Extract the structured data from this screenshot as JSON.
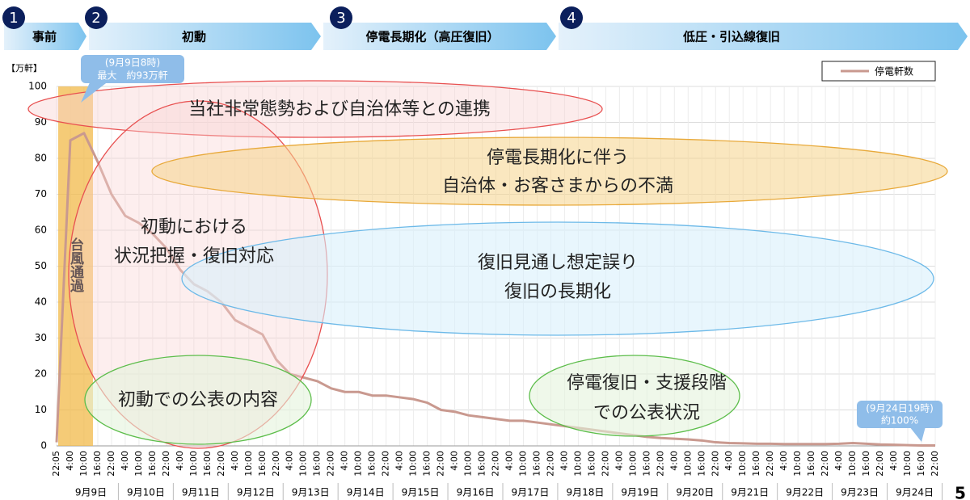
{
  "chart_data": {
    "type": "line",
    "phases": [
      {
        "number": 1,
        "label": "事前"
      },
      {
        "number": 2,
        "label": "初動"
      },
      {
        "number": 3,
        "label": "停電長期化（高圧復旧）"
      },
      {
        "number": 4,
        "label": "低圧・引込線復旧"
      }
    ],
    "y_unit": "【万軒】",
    "categories": [
      "22:05",
      "4:00",
      "10:00",
      "16:00",
      "22:00",
      "4:00",
      "10:00",
      "16:00",
      "22:00",
      "4:00",
      "10:00",
      "16:00",
      "22:00",
      "4:00",
      "10:00",
      "16:00",
      "22:00",
      "4:00",
      "10:00",
      "16:00",
      "22:00",
      "4:00",
      "10:00",
      "16:00",
      "22:00",
      "4:00",
      "10:00",
      "16:00",
      "22:00",
      "4:00",
      "10:00",
      "16:00",
      "22:00",
      "4:00",
      "10:00",
      "16:00",
      "22:00",
      "4:00",
      "10:00",
      "16:00",
      "22:00",
      "4:00",
      "10:00",
      "16:00",
      "22:00",
      "4:00",
      "10:00",
      "16:00",
      "22:00",
      "4:00",
      "10:00",
      "16:00",
      "22:00",
      "4:00",
      "10:00",
      "16:00",
      "22:00",
      "4:00",
      "10:00",
      "16:00",
      "22:00",
      "4:00",
      "10:00",
      "16:00",
      "22:00"
    ],
    "days": [
      "9月9日",
      "9月10日",
      "9月11日",
      "9月12日",
      "9月13日",
      "9月14日",
      "9月15日",
      "9月16日",
      "9月17日",
      "9月18日",
      "9月19日",
      "9月20日",
      "9月21日",
      "9月22日",
      "9月23日",
      "9月24日"
    ],
    "series": [
      {
        "name": "停電軒数",
        "color": "#c9998f",
        "values": [
          1,
          85,
          87,
          79,
          70,
          64,
          62,
          59,
          55,
          49,
          45,
          43,
          40,
          35,
          33,
          31,
          24,
          20,
          19,
          18,
          16,
          15,
          15,
          14,
          14,
          13.5,
          13,
          12,
          10,
          9.5,
          8.5,
          8,
          7.5,
          7,
          7,
          6.5,
          6,
          5.5,
          5,
          4.5,
          4,
          3.5,
          3,
          2.5,
          2.2,
          2,
          1.8,
          1.5,
          1,
          0.8,
          0.7,
          0.6,
          0.6,
          0.5,
          0.5,
          0.5,
          0.5,
          0.6,
          0.8,
          0.6,
          0.4,
          0.3,
          0.2,
          0.1,
          0.1
        ]
      }
    ],
    "ylim": [
      0,
      100
    ],
    "yticks": [
      0,
      10,
      20,
      30,
      40,
      50,
      60,
      70,
      80,
      90,
      100
    ],
    "grid": true,
    "legend": "upper right",
    "band_label": "台風通過",
    "callouts": [
      {
        "lines": [
          "(9月9日8時)",
          "最大　約93万軒"
        ]
      },
      {
        "lines": [
          "(9月24日19時)",
          "約100%"
        ]
      }
    ],
    "annotations": [
      {
        "lines": [
          "当社非常態勢および自治体等との連携"
        ]
      },
      {
        "lines": [
          "初動における",
          "状況把握・復旧対応"
        ]
      },
      {
        "lines": [
          "停電長期化に伴う",
          "自治体・お客さまからの不満"
        ]
      },
      {
        "lines": [
          "復旧見通し想定誤り",
          "復旧の長期化"
        ]
      },
      {
        "lines": [
          "初動での公表の内容"
        ]
      },
      {
        "lines": [
          "停電復旧・支援段階",
          "での公表状況"
        ]
      }
    ],
    "page_number": 5
  }
}
